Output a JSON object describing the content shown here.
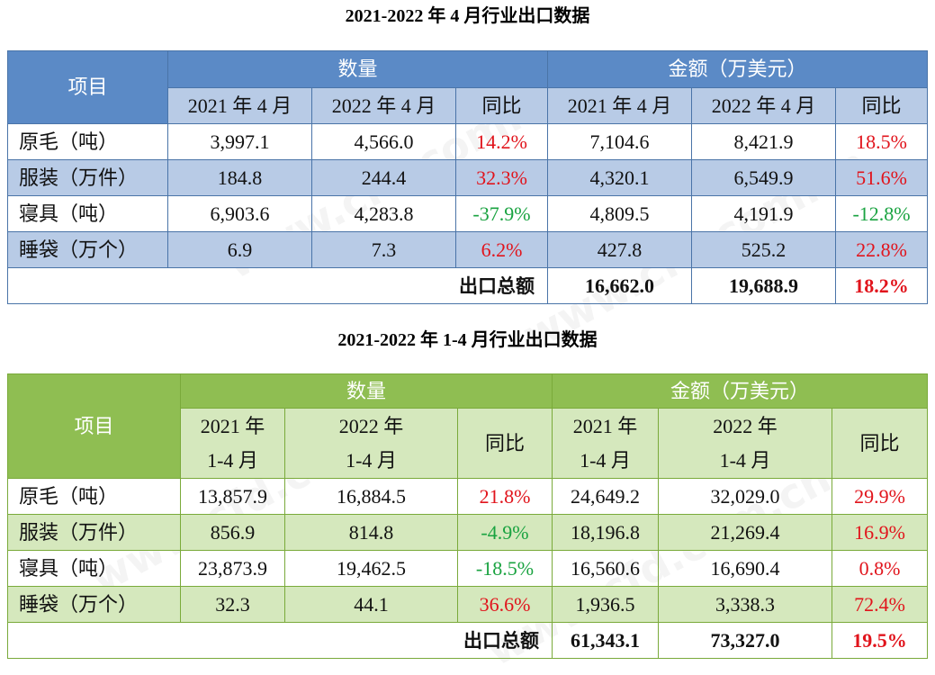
{
  "table1": {
    "title": "2021-2022 年 4 月行业出口数据",
    "item_header": "项目",
    "qty_header": "数量",
    "amount_header": "金额（万美元）",
    "sub_headers": [
      "2021 年 4 月",
      "2022 年 4 月",
      "同比",
      "2021 年 4 月",
      "2022 年 4 月",
      "同比"
    ],
    "rows": [
      {
        "label": "原毛（吨）",
        "q2021": "3,997.1",
        "q2022": "4,566.0",
        "qyoy": "14.2%",
        "a2021": "7,104.6",
        "a2022": "8,421.9",
        "ayoy": "18.5%"
      },
      {
        "label": "服装（万件）",
        "q2021": "184.8",
        "q2022": "244.4",
        "qyoy": "32.3%",
        "a2021": "4,320.1",
        "a2022": "6,549.9",
        "ayoy": "51.6%"
      },
      {
        "label": "寝具（吨）",
        "q2021": "6,903.6",
        "q2022": "4,283.8",
        "qyoy": "-37.9%",
        "a2021": "4,809.5",
        "a2022": "4,191.9",
        "ayoy": "-12.8%"
      },
      {
        "label": "睡袋（万个）",
        "q2021": "6.9",
        "q2022": "7.3",
        "qyoy": "6.2%",
        "a2021": "427.8",
        "a2022": "525.2",
        "ayoy": "22.8%"
      }
    ],
    "total": {
      "label": "出口总额",
      "a2021": "16,662.0",
      "a2022": "19,688.9",
      "ayoy": "18.2%"
    }
  },
  "table2": {
    "title": "2021-2022 年 1-4 月行业出口数据",
    "item_header": "项目",
    "qty_header": "数量",
    "amount_header": "金额（万美元）",
    "sub_headers": [
      {
        "line1": "2021 年",
        "line2": "1-4 月"
      },
      {
        "line1": "2022 年",
        "line2": "1-4 月"
      },
      {
        "line1": "同比",
        "line2": ""
      },
      {
        "line1": "2021 年",
        "line2": "1-4 月"
      },
      {
        "line1": "2022 年",
        "line2": "1-4 月"
      },
      {
        "line1": "同比",
        "line2": ""
      }
    ],
    "rows": [
      {
        "label": "原毛（吨）",
        "q2021": "13,857.9",
        "q2022": "16,884.5",
        "qyoy": "21.8%",
        "a2021": "24,649.2",
        "a2022": "32,029.0",
        "ayoy": "29.9%"
      },
      {
        "label": "服装（万件）",
        "q2021": "856.9",
        "q2022": "814.8",
        "qyoy": "-4.9%",
        "a2021": "18,196.8",
        "a2022": "21,269.4",
        "ayoy": "16.9%"
      },
      {
        "label": "寝具（吨）",
        "q2021": "23,873.9",
        "q2022": "19,462.5",
        "qyoy": "-18.5%",
        "a2021": "16,560.6",
        "a2022": "16,690.4",
        "ayoy": "0.8%"
      },
      {
        "label": "睡袋（万个）",
        "q2021": "32.3",
        "q2022": "44.1",
        "qyoy": "36.6%",
        "a2021": "1,936.5",
        "a2022": "3,338.3",
        "ayoy": "72.4%"
      }
    ],
    "total": {
      "label": "出口总额",
      "a2021": "61,343.1",
      "a2022": "73,327.0",
      "ayoy": "19.5%"
    }
  },
  "colors": {
    "table1_header": "#5b8ac6",
    "table1_band": "#b8cbe6",
    "table2_header": "#8fbe52",
    "table2_band": "#d5e8bd",
    "increase": "#e1141c",
    "decrease": "#1aa341"
  },
  "watermark": "www.cfd.com.cn"
}
